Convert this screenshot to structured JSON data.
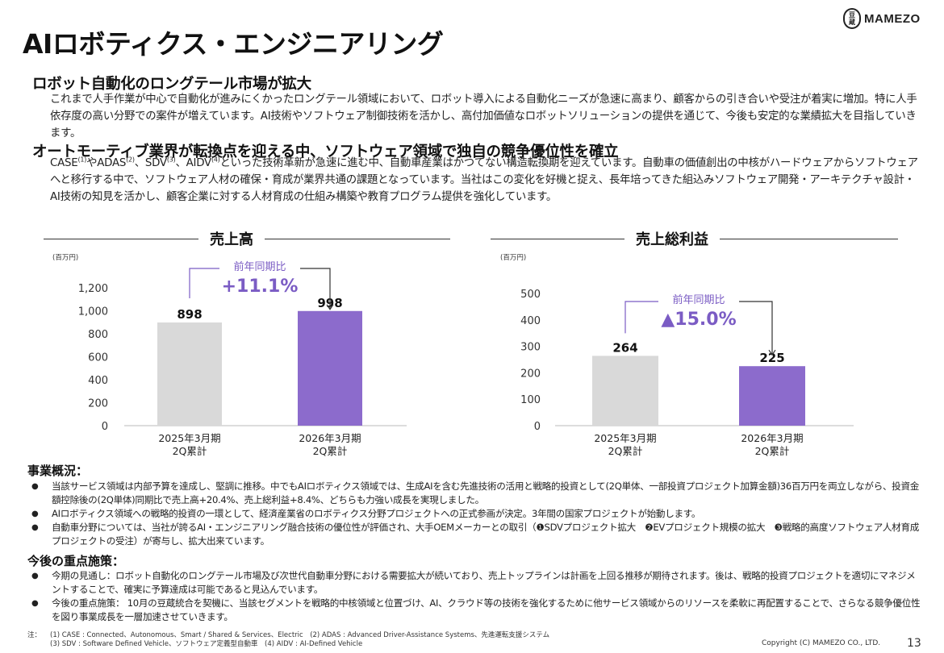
{
  "logo": {
    "seal_top": "豆",
    "seal_bottom": "蔵",
    "text": "MAMEZO"
  },
  "page_title": "AIロボティクス・エンジニアリング",
  "section1": {
    "heading": "ロボット自動化のロングテール市場が拡大",
    "body": "これまで人手作業が中心で自動化が進みにくかったロングテール領域において、ロボット導入による自動化ニーズが急速に高まり、顧客からの引き合いや受注が着実に増加。特に人手依存度の高い分野での案件が増えています。AI技術やソフトウェア制御技術を活かし、高付加価値なロボットソリューションの提供を通じて、今後も安定的な業績拡大を目指していきます。"
  },
  "section2": {
    "heading": "オートモーティブ業界が転換点を迎える中、ソフトウェア領域で独自の競争優位性を確立",
    "body_1": "CASE",
    "sup_1": "(1)",
    "body_2": "やADAS",
    "sup_2": "(2)",
    "body_3": "、SDV",
    "sup_3": "(3)",
    "body_4": "、AIDV",
    "sup_4": "(4)",
    "body_5": "といった技術革新が急速に進む中、自動車産業はかつてない構造転換期を迎えています。自動車の価値創出の中核がハードウェアからソフトウェアへと移行する中で、ソフトウェア人材の確保・育成が業界共通の課題となっています。当社はこの変化を好機と捉え、長年培ってきた組込みソフトウェア開発・アーキテクチャ設計・AI技術の知見を活かし、顧客企業に対する人材育成の仕組み構築や教育プログラム提供を強化しています。"
  },
  "chart_data": [
    {
      "type": "bar",
      "title": "売上高",
      "unit": "(百万円)",
      "categories": [
        "2025年3月期\n2Q累計",
        "2026年3月期\n2Q累計"
      ],
      "values": [
        898,
        998
      ],
      "value_labels": [
        "898",
        "998"
      ],
      "ylim": [
        0,
        1200
      ],
      "yticks": [
        0,
        200,
        400,
        600,
        800,
        1000,
        1200
      ],
      "ytick_labels": [
        "0",
        "200",
        "400",
        "600",
        "800",
        "1,000",
        "1,200"
      ],
      "bar_colors": [
        "#d9d9d9",
        "#8c6bcc"
      ],
      "annotation_label": "前年同期比",
      "annotation_value": "+11.1%",
      "accent_color": "#7b5cc4",
      "grid": false,
      "legend": "none"
    },
    {
      "type": "bar",
      "title": "売上総利益",
      "unit": "(百万円)",
      "categories": [
        "2025年3月期\n2Q累計",
        "2026年3月期\n2Q累計"
      ],
      "values": [
        264,
        225
      ],
      "value_labels": [
        "264",
        "225"
      ],
      "ylim": [
        0,
        500
      ],
      "yticks": [
        0,
        100,
        200,
        300,
        400,
        500
      ],
      "ytick_labels": [
        "0",
        "100",
        "200",
        "300",
        "400",
        "500"
      ],
      "bar_colors": [
        "#d9d9d9",
        "#8c6bcc"
      ],
      "annotation_label": "前年同期比",
      "annotation_value": "▲15.0%",
      "accent_color": "#7b5cc4",
      "grid": false,
      "legend": "none"
    }
  ],
  "overview": {
    "heading": "事業概況：",
    "items": [
      "当該サービス領域は内部予算を達成し、堅調に推移。中でもAIロボティクス領域では、生成AIを含む先進技術の活用と戦略的投資として(2Q単体、一部投資プロジェクト加算金額)36百万円を両立しながら、投資金額控除後の(2Q単体)同期比で売上高+20.4%、売上総利益+8.4%、どちらも力強い成長を実現しました。",
      "AIロボティクス領域への戦略的投資の一環として、経済産業省のロボティクス分野プロジェクトへの正式参画が決定。3年間の国家プロジェクトが始動します。",
      "自動車分野については、当社が誇るAI・エンジニアリング融合技術の優位性が評価され、大手OEMメーカーとの取引（❶SDVプロジェクト拡大　❷EVプロジェクト規模の拡大　❸戦略的高度ソフトウェア人材育成プロジェクトの受注）が寄与し、拡大出来ています。"
    ]
  },
  "focus": {
    "heading": "今後の重点施策：",
    "items": [
      "今期の見通し：ロボット自動化のロングテール市場及び次世代自動車分野における需要拡大が続いており、売上トップラインは計画を上回る推移が期待されます。後は、戦略的投資プロジェクトを適切にマネジメントすることで、確実に予算達成は可能であると見込んでいます。",
      "今後の重点施策： 10月の豆蔵統合を契機に、当該セグメントを戦略的中核領域と位置づけ、AI、クラウド等の技術を強化するために他サービス領域からのリソースを柔軟に再配置することで、さらなる競争優位性を図り事業成長を一層加速させていきます。"
    ]
  },
  "notes": {
    "label": "注：",
    "line1": "(1) CASE : Connected、Autonomous、Smart / Shared & Services、Electric　(2) ADAS : Advanced Driver-Assistance Systems、先進運転支援システム",
    "line2": "(3) SDV : Software Defined Vehicle、ソフトウェア定義型自動車　(4) AIDV : AI-Defined Vehicle"
  },
  "copyright": "Copyright (C) MAMEZO  CO., LTD.",
  "page_number": "13"
}
